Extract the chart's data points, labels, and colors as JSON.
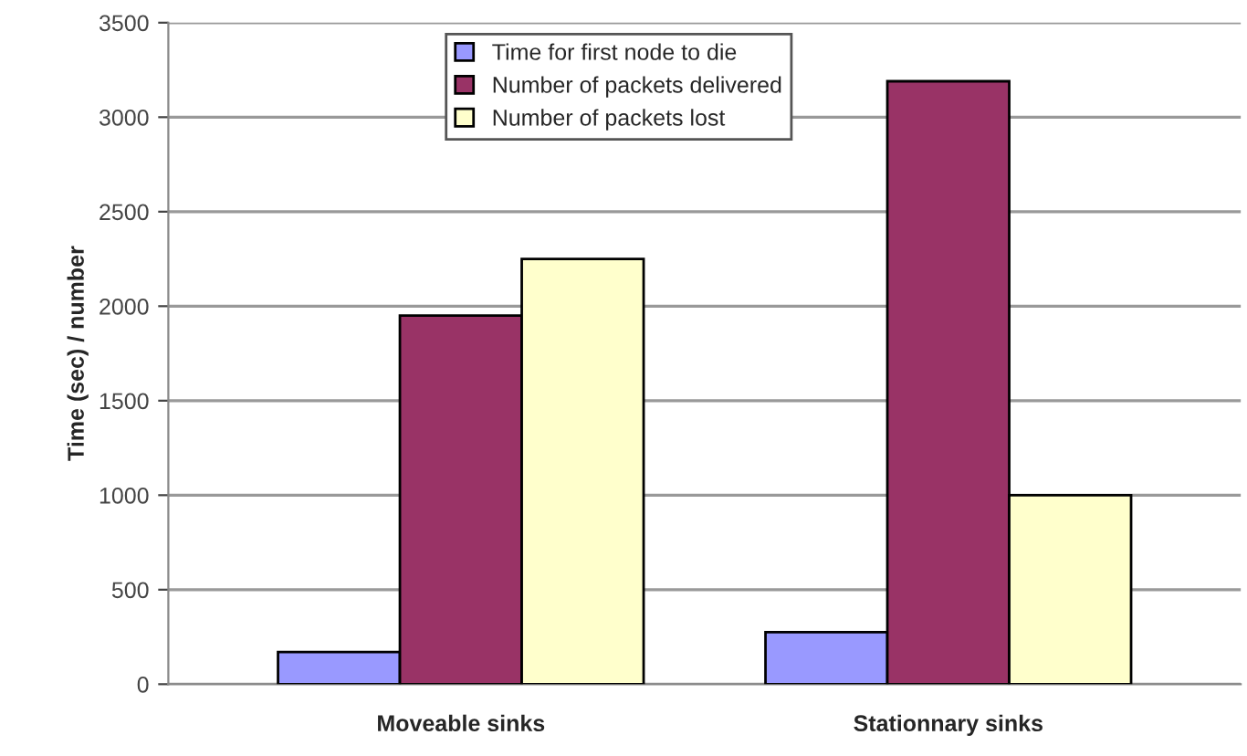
{
  "chart_data": {
    "type": "bar",
    "ylabel": "Time (sec) / number",
    "categories": [
      "Moveable sinks",
      "Stationnary sinks"
    ],
    "series": [
      {
        "name": "Time for first node to die",
        "color": "#9999ff",
        "values": [
          170,
          275
        ]
      },
      {
        "name": "Number of packets delivered",
        "color": "#993366",
        "values": [
          1950,
          3190
        ]
      },
      {
        "name": "Number of packets lost",
        "color": "#ffffcc",
        "values": [
          2250,
          1000
        ]
      }
    ],
    "ylim": [
      0,
      3500
    ],
    "yticks": [
      0,
      500,
      1000,
      1500,
      2000,
      2500,
      3000,
      3500
    ],
    "grid": "y",
    "legend": "top"
  }
}
